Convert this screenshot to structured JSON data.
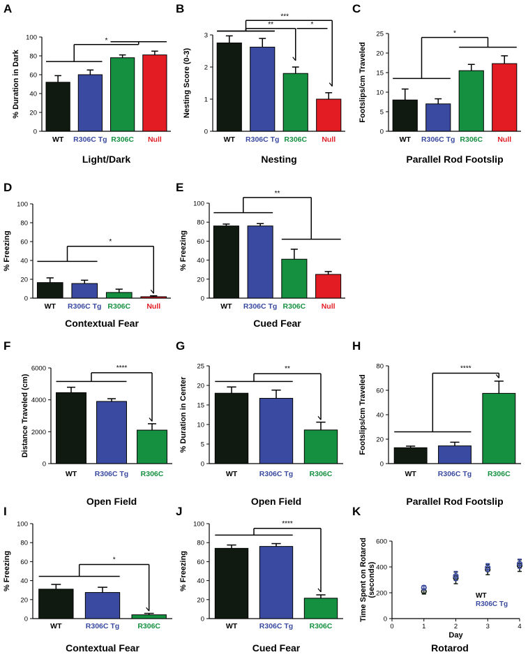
{
  "colors": {
    "WT": "#111a11",
    "R306C Tg": "#3a4aa0",
    "R306C": "#159040",
    "Null": "#e31b23",
    "R306C_label": "#159040",
    "Null_label": "#e31b23",
    "WT_label": "#000000",
    "Tg_label": "#3a4aa0"
  },
  "chart_data": [
    {
      "id": "A",
      "letter": "A",
      "type": "bar",
      "title": "Light/Dark",
      "ylabel": "% Duration in Dark",
      "categories": [
        "WT",
        "R306C Tg",
        "R306C",
        "Null"
      ],
      "values": [
        52,
        60,
        78,
        81
      ],
      "errors": [
        7,
        5,
        3,
        4
      ],
      "ylim": [
        0,
        100
      ],
      "yticks": [
        0,
        20,
        40,
        60,
        80,
        100
      ],
      "annotations": [
        {
          "label": "*",
          "type": "groups",
          "left": [
            0,
            1
          ],
          "right": [
            2,
            3
          ],
          "lineLeft": 74,
          "lineRight": 95,
          "level": 92,
          "labelPos": 0.5
        }
      ]
    },
    {
      "id": "B",
      "letter": "B",
      "type": "bar",
      "title": "Nesting",
      "ylabel": "Nesting Score (0-3)",
      "categories": [
        "WT",
        "R306C Tg",
        "R306C",
        "Null"
      ],
      "values": [
        2.75,
        2.62,
        1.8,
        1.0
      ],
      "errors": [
        0.22,
        0.27,
        0.2,
        0.2
      ],
      "ylim": [
        0,
        3
      ],
      "yticks": [
        0,
        1,
        2,
        3
      ],
      "annotations": [
        {
          "label": "***",
          "type": "hook",
          "groupTop": 3.25,
          "lineLeft": 3.12,
          "barTop": 3.45,
          "target": 3,
          "arrowTo": 1.4,
          "labelPos": 0.45
        },
        {
          "label": "**",
          "type": "hook",
          "groupTop": 3.0,
          "lineLeft": 3.12,
          "barTop": 3.2,
          "target": 2,
          "arrowTo": 2.2,
          "labelPos": 0.5
        },
        {
          "label": "*",
          "type": "pair",
          "from": 2,
          "to": 3,
          "level": 3.2,
          "labelPos": 0.5
        }
      ]
    },
    {
      "id": "C",
      "letter": "C",
      "type": "bar",
      "title": "Parallel Rod Footslip",
      "ylabel": "Footslips/cm Traveled",
      "categories": [
        "WT",
        "R306C Tg",
        "R306C",
        "Null"
      ],
      "values": [
        8,
        7,
        15.5,
        17.3
      ],
      "errors": [
        2.8,
        1.3,
        1.6,
        2.0
      ],
      "ylim": [
        0,
        25
      ],
      "yticks": [
        0,
        5,
        10,
        15,
        20,
        25
      ],
      "annotations": [
        {
          "label": "*",
          "type": "groups",
          "left": [
            0,
            1
          ],
          "right": [
            2,
            3
          ],
          "lineLeft": 13.5,
          "lineRight": 21.5,
          "level": 24,
          "labelPos": 0.5
        }
      ]
    },
    {
      "id": "D",
      "letter": "D",
      "type": "bar",
      "title": "Contextual Fear",
      "ylabel": "% Freezing",
      "categories": [
        "WT",
        "R306C Tg",
        "R306C",
        "Null"
      ],
      "values": [
        16.5,
        15.5,
        6,
        1.5
      ],
      "errors": [
        5,
        3.5,
        3.5,
        1
      ],
      "ylim": [
        0,
        100
      ],
      "yticks": [
        0,
        20,
        40,
        60,
        80,
        100
      ],
      "annotations": [
        {
          "label": "*",
          "type": "group-to-bar",
          "left": [
            0,
            1
          ],
          "lineLeft": 39,
          "level": 55,
          "target": 3,
          "arrowTo": 5
        }
      ]
    },
    {
      "id": "E",
      "letter": "E",
      "type": "bar",
      "title": "Cued Fear",
      "ylabel": "% Freezing",
      "categories": [
        "WT",
        "R306C Tg",
        "R306C",
        "Null"
      ],
      "values": [
        76,
        76,
        41,
        25
      ],
      "errors": [
        2,
        2.5,
        10.5,
        3
      ],
      "ylim": [
        0,
        100
      ],
      "yticks": [
        0,
        20,
        40,
        60,
        80,
        100
      ],
      "annotations": [
        {
          "label": "**",
          "type": "groups",
          "left": [
            0,
            1
          ],
          "right": [
            2,
            3
          ],
          "lineLeft": 90,
          "lineRight": 62,
          "level": 106,
          "labelPos": 0.5
        }
      ]
    },
    {
      "id": "F",
      "letter": "F",
      "type": "bar",
      "title": "Open Field",
      "ylabel": "Distance Traveled (cm)",
      "categories": [
        "WT",
        "R306C Tg",
        "R306C"
      ],
      "values": [
        4450,
        3900,
        2100
      ],
      "errors": [
        340,
        170,
        400
      ],
      "ylim": [
        0,
        6000
      ],
      "yticks": [
        0,
        2000,
        4000,
        6000
      ],
      "annotations": [
        {
          "label": "****",
          "type": "group-to-bar",
          "left": [
            0,
            1
          ],
          "lineLeft": 5150,
          "level": 5700,
          "target": 2,
          "arrowTo": 2650
        }
      ]
    },
    {
      "id": "G",
      "letter": "G",
      "type": "bar",
      "title": "Open Field",
      "ylabel": "% Duration in Center",
      "categories": [
        "WT",
        "R306C Tg",
        "R306C"
      ],
      "values": [
        18,
        16.7,
        8.6
      ],
      "errors": [
        1.6,
        2.1,
        2.0
      ],
      "ylim": [
        0,
        25
      ],
      "yticks": [
        0,
        5,
        10,
        15,
        20,
        25
      ],
      "annotations": [
        {
          "label": "**",
          "type": "group-to-bar",
          "left": [
            0,
            1
          ],
          "lineLeft": 21,
          "level": 23,
          "target": 2,
          "arrowTo": 11.2
        }
      ]
    },
    {
      "id": "H",
      "letter": "H",
      "type": "bar",
      "title": "Parallel Rod Footslip",
      "ylabel": "Footslips/cm Traveled",
      "categories": [
        "WT",
        "R306C Tg",
        "R306C"
      ],
      "values": [
        13,
        14.5,
        57.5
      ],
      "errors": [
        1.3,
        3,
        10
      ],
      "ylim": [
        0,
        80
      ],
      "yticks": [
        0,
        20,
        40,
        60,
        80
      ],
      "annotations": [
        {
          "label": "****",
          "type": "group-to-bar",
          "left": [
            0,
            1
          ],
          "lineLeft": 26,
          "level": 74,
          "target": 2,
          "arrowTo": 70
        }
      ]
    },
    {
      "id": "I",
      "letter": "I",
      "type": "bar",
      "title": "Contextual Fear",
      "ylabel": "% Freezing",
      "categories": [
        "WT",
        "R306C Tg",
        "R306C"
      ],
      "values": [
        31,
        27.5,
        4
      ],
      "errors": [
        5,
        5.5,
        1.5
      ],
      "ylim": [
        0,
        100
      ],
      "yticks": [
        0,
        20,
        40,
        60,
        80,
        100
      ],
      "annotations": [
        {
          "label": "*",
          "type": "group-to-bar",
          "left": [
            0,
            1
          ],
          "lineLeft": 44.5,
          "level": 57,
          "target": 2,
          "arrowTo": 8
        }
      ]
    },
    {
      "id": "J",
      "letter": "J",
      "type": "bar",
      "title": "Cued Fear",
      "ylabel": "% Freezing",
      "categories": [
        "WT",
        "R306C Tg",
        "R306C"
      ],
      "values": [
        74,
        76,
        21.5
      ],
      "errors": [
        3.5,
        3,
        3.5
      ],
      "ylim": [
        0,
        100
      ],
      "yticks": [
        0,
        20,
        40,
        60,
        80,
        100
      ],
      "annotations": [
        {
          "label": "****",
          "type": "group-to-bar",
          "left": [
            0,
            1
          ],
          "lineLeft": 88,
          "level": 95,
          "target": 2,
          "arrowTo": 28
        }
      ]
    },
    {
      "id": "K",
      "letter": "K",
      "type": "scatter",
      "title": "Rotarod",
      "ylabel": "Time Spent on Rotarod\n(seconds)",
      "xlabel": "Day",
      "xlim": [
        0,
        4
      ],
      "xticks": [
        0,
        1,
        2,
        3,
        4
      ],
      "ylim": [
        0,
        600
      ],
      "yticks": [
        0,
        200,
        400,
        600
      ],
      "series": [
        {
          "name": "WT",
          "x": [
            1,
            2,
            3,
            4
          ],
          "y": [
            210,
            315,
            380,
            410
          ],
          "errors": [
            20,
            45,
            40,
            45
          ]
        },
        {
          "name": "R306C Tg",
          "x": [
            1,
            2,
            3,
            4
          ],
          "y": [
            240,
            330,
            395,
            425
          ],
          "errors": [
            15,
            35,
            30,
            35
          ]
        }
      ]
    }
  ]
}
